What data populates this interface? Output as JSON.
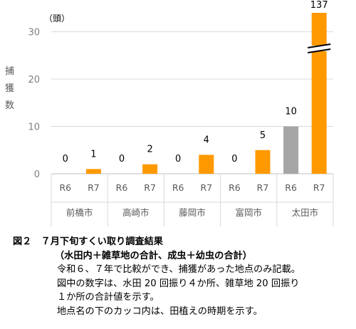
{
  "chart_data": {
    "type": "bar",
    "unit_label": "（頭）",
    "ylabel": "捕獲数",
    "ylim": [
      0,
      34
    ],
    "yticks": [
      0,
      10,
      20,
      30
    ],
    "axis_break": true,
    "groups": [
      {
        "name": "前橋市",
        "categories": [
          "R6",
          "R7"
        ],
        "values": [
          0,
          1
        ]
      },
      {
        "name": "高崎市",
        "categories": [
          "R6",
          "R7"
        ],
        "values": [
          0,
          2
        ]
      },
      {
        "name": "藤岡市",
        "categories": [
          "R6",
          "R7"
        ],
        "values": [
          0,
          4
        ]
      },
      {
        "name": "富岡市",
        "categories": [
          "R6",
          "R7"
        ],
        "values": [
          0,
          5
        ]
      },
      {
        "name": "太田市",
        "categories": [
          "R6",
          "R7"
        ],
        "values": [
          10,
          137
        ]
      }
    ],
    "colors": {
      "R6": "#a6a6a6",
      "R7": "#ff9900"
    }
  },
  "caption": {
    "title_line1": "図２　７月下旬すくい取り調査結果",
    "title_line2": "（水田内＋雑草地の合計、成虫＋幼虫の合計）",
    "notes": [
      "令和６、７年で比較ができ、捕獲があった地点のみ記載。",
      "図中の数字は、水田 20 回振り４か所、雑草地 20 回振り",
      "１か所の合計値を示す。",
      "地点名の下のカッコ内は、田植えの時期を示す。"
    ]
  }
}
